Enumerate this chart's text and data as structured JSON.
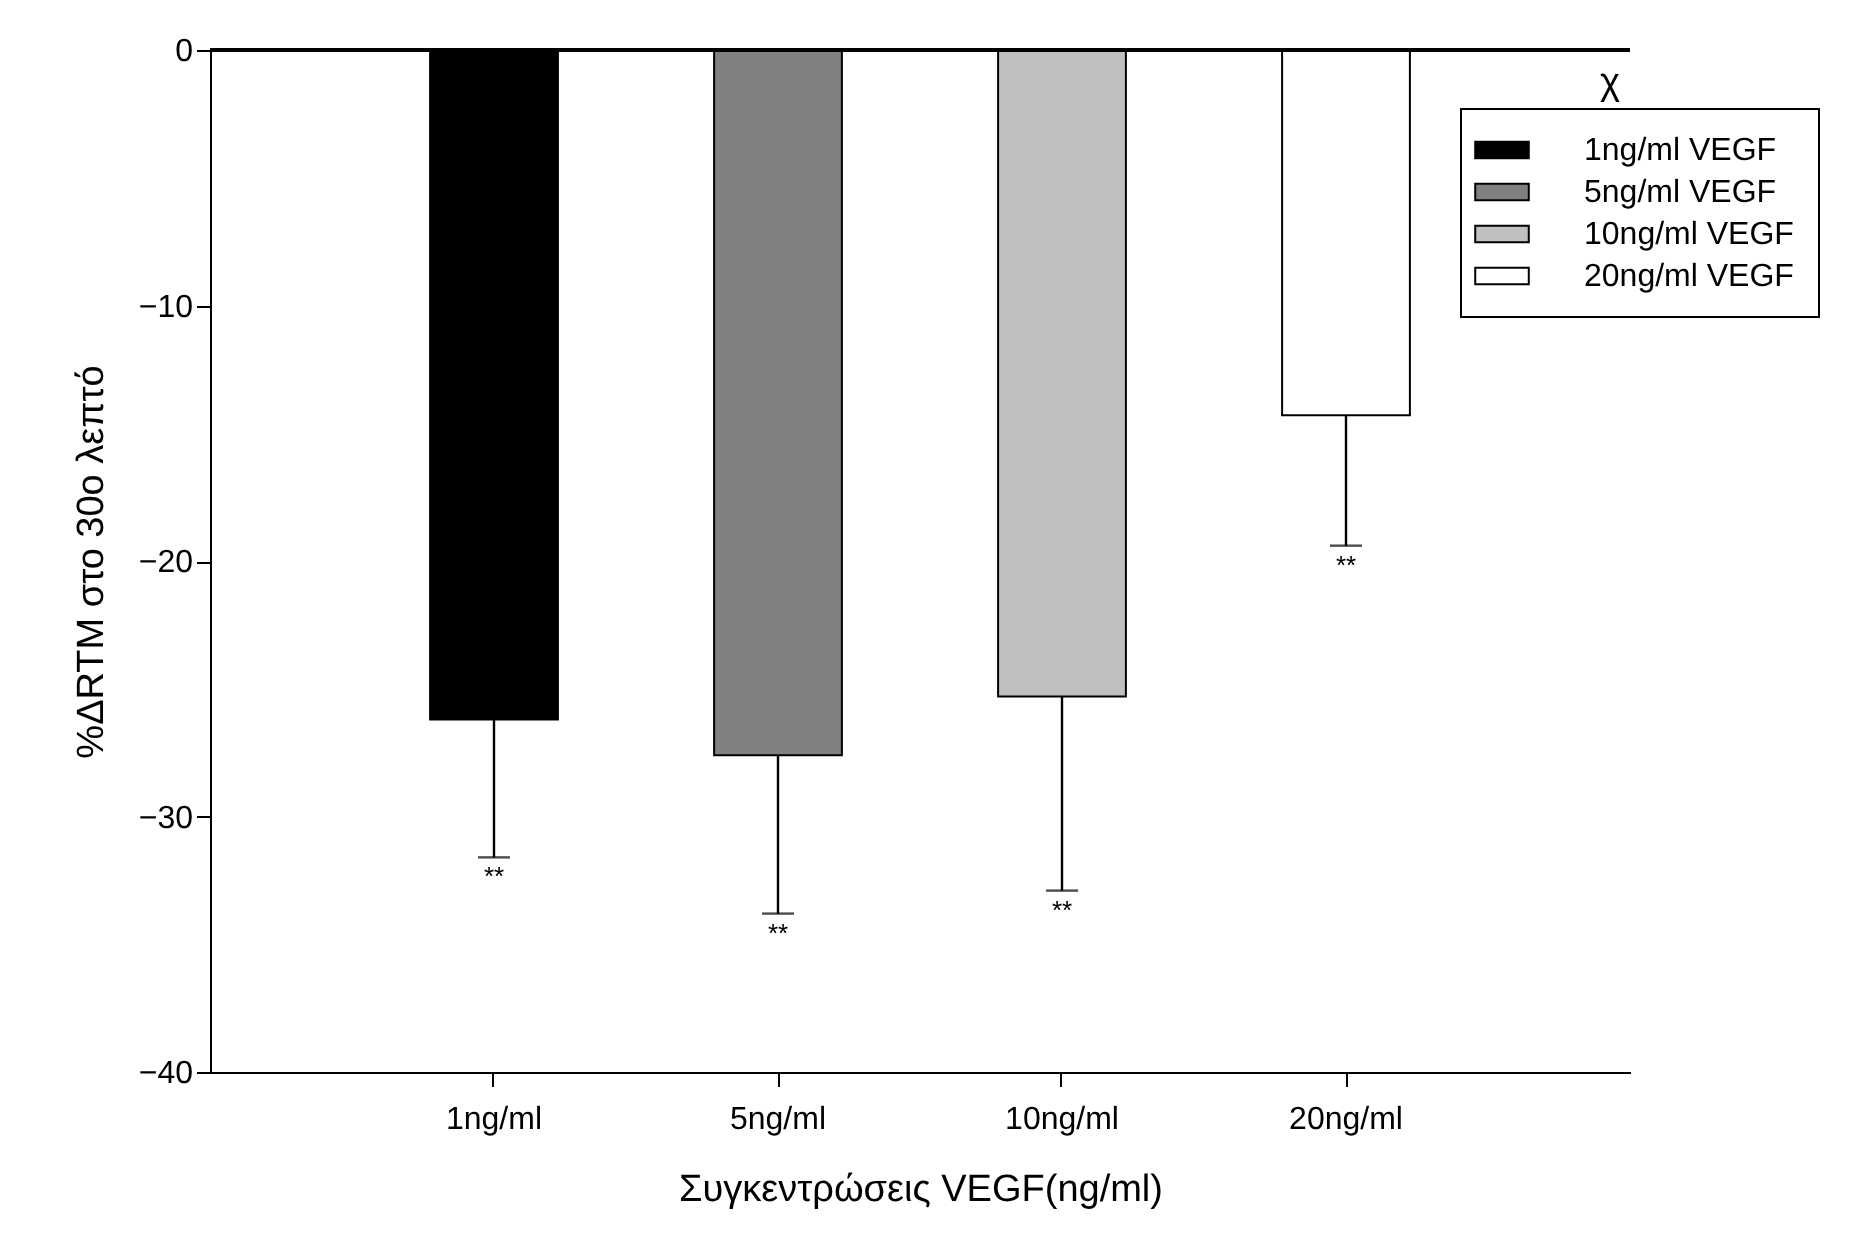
{
  "chart_data": {
    "type": "bar",
    "categories": [
      "1ng/ml",
      "5ng/ml",
      "10ng/ml",
      "20ng/ml"
    ],
    "xlabel": "Συγκεντρώσεις VEGF(ng/ml)",
    "ylabel": "%ΔRTM στο 30ο λεπτό",
    "ylim": [
      -40,
      0
    ],
    "yticks": [
      -40,
      -30,
      -20,
      -10,
      0
    ],
    "series": [
      {
        "name": "1ng/ml VEGF",
        "color": "#000000",
        "values": [
          -26.2,
          null,
          null,
          null
        ],
        "errors": [
          [
            -31.6,
            -26.2
          ],
          null,
          null,
          null
        ]
      },
      {
        "name": "5ng/ml VEGF",
        "color": "#808080",
        "values": [
          null,
          -27.6,
          null,
          null
        ],
        "errors": [
          null,
          [
            -33.8,
            -27.6
          ],
          null,
          null
        ]
      },
      {
        "name": "10ng/ml VEGF",
        "color": "#c0c0c0",
        "values": [
          null,
          null,
          -25.3,
          null
        ],
        "errors": [
          null,
          null,
          [
            -32.9,
            -25.3
          ],
          null
        ]
      },
      {
        "name": "20ng/ml VEGF",
        "color": "#ffffff",
        "values": [
          null,
          null,
          null,
          -14.3
        ],
        "errors": [
          null,
          null,
          null,
          [
            -19.4,
            -14.3
          ]
        ]
      }
    ],
    "ref_lines": [
      {
        "axis": "y",
        "value": 0
      }
    ],
    "annotations": [
      {
        "text": "**",
        "x": "1ng/ml",
        "y": -31.6
      },
      {
        "text": "**",
        "x": "5ng/ml",
        "y": -33.8
      },
      {
        "text": "**",
        "x": "10ng/ml",
        "y": -32.9
      },
      {
        "text": "**",
        "x": "20ng/ml",
        "y": -19.4
      },
      "χ"
    ],
    "legend": "top right",
    "grid": false
  }
}
